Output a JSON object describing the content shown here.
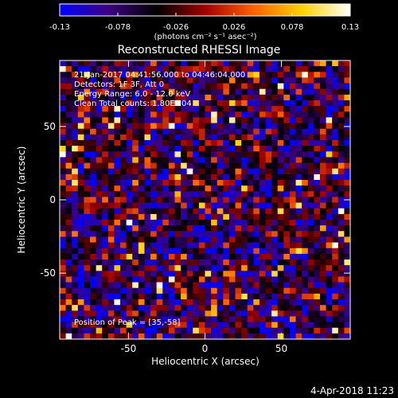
{
  "chart_data": {
    "type": "heatmap",
    "title": "Reconstructed RHESSI Image",
    "xlabel": "Heliocentric X (arcsec)",
    "ylabel": "Heliocentric Y (arcsec)",
    "xlim": [
      -95,
      95
    ],
    "ylim": [
      -95,
      95
    ],
    "xticks": [
      "-50",
      "0",
      "50"
    ],
    "xtick_values": [
      -50,
      0,
      50
    ],
    "yticks": [
      "-50",
      "0",
      "50"
    ],
    "ytick_values": [
      -50,
      0,
      50
    ],
    "colorbar": {
      "range": [
        -0.13,
        0.13
      ],
      "ticks": [
        "-0.13",
        "-0.078",
        "-0.026",
        "0.026",
        "0.078",
        "0.13"
      ],
      "tick_values": [
        -0.13,
        -0.078,
        -0.026,
        0.026,
        0.078,
        0.13
      ],
      "units": "(photons cm⁻² s⁻¹ asec⁻²)",
      "colormap": [
        "#0000ff",
        "#3c0082",
        "#000000",
        "#a00000",
        "#ff6000",
        "#ffd000",
        "#ffffff"
      ]
    },
    "annotations": [
      "21-Jan-2017 04:41:56.000 to 04:46:04.000",
      "Detectors: 1F 3F, Att 0",
      "Energy Range: 6.0 - 12.0 keV",
      "Clean     Total counts: 1.80E+04"
    ],
    "peak_label": "Position of Peak = [35,-58]",
    "grid_cols": 48,
    "grid_rows": 49,
    "noise_seed": 20170121
  },
  "footer": {
    "timestamp": "4-Apr-2018 11:23"
  }
}
